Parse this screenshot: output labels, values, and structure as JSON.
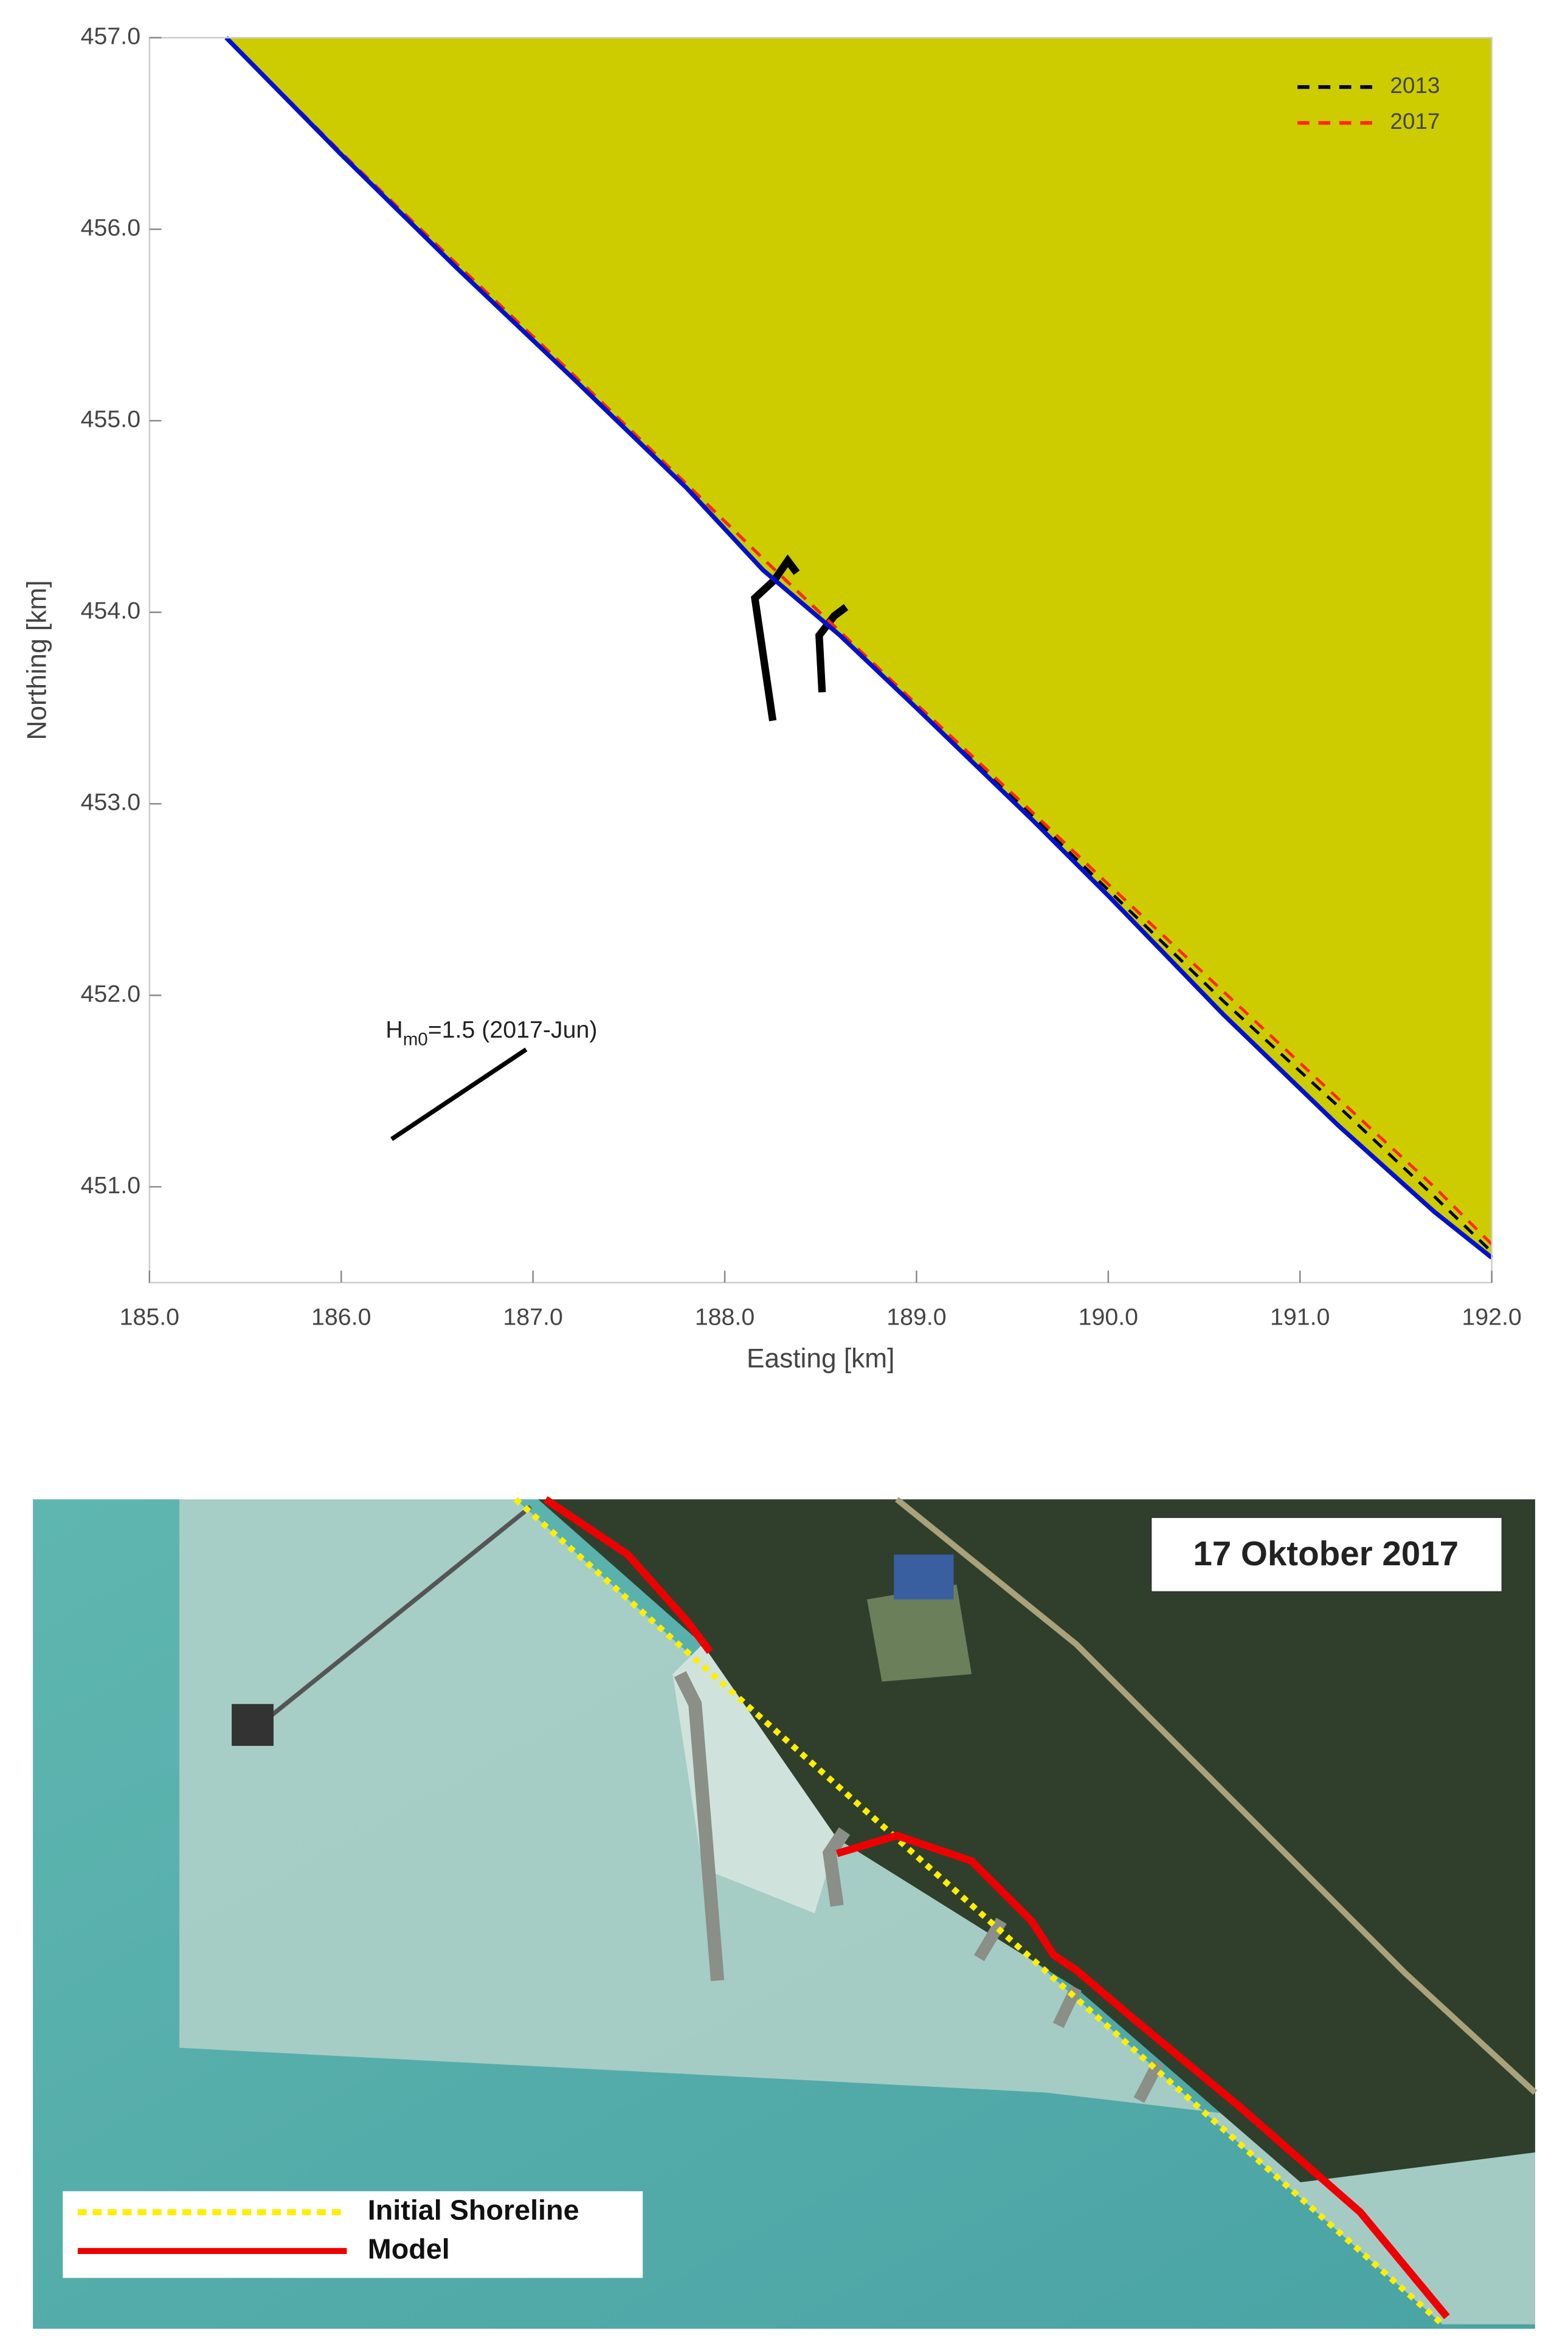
{
  "chart_data": [
    {
      "type": "line",
      "xlabel": "Easting [km]",
      "ylabel": "Northing [km]",
      "annotation": [
        "H",
        "m0",
        "=1.5 (2017-Jun)"
      ],
      "x": [
        185.4,
        186.0,
        186.6,
        187.2,
        187.8,
        188.2,
        188.6,
        189.0,
        189.6,
        190.0,
        190.6,
        191.2,
        191.7,
        192.0
      ],
      "series": [
        {
          "name": "2013",
          "color": "#000000",
          "dashed": true,
          "values": [
            457.0,
            456.4,
            455.82,
            455.25,
            454.67,
            454.28,
            453.9,
            453.51,
            452.94,
            452.55,
            451.97,
            451.42,
            450.95,
            450.66
          ]
        },
        {
          "name": "2017",
          "color": "#ff2a00",
          "dashed": true,
          "values": [
            457.0,
            456.4,
            455.82,
            455.25,
            454.67,
            454.28,
            453.9,
            453.52,
            452.96,
            452.58,
            452.02,
            451.46,
            451.0,
            450.7
          ]
        },
        {
          "color": "#0010d0",
          "dashed": false,
          "fill": "#cccc00",
          "values": [
            457.0,
            456.39,
            455.8,
            455.23,
            454.65,
            454.22,
            453.88,
            453.5,
            452.92,
            452.52,
            451.9,
            451.32,
            450.87,
            450.63
          ]
        }
      ],
      "xlim": [
        185,
        192
      ],
      "ylim": [
        450.5,
        457
      ],
      "xticks": [
        {
          "value": 185,
          "label": "185.0"
        },
        {
          "value": 186,
          "label": "186.0"
        },
        {
          "value": 187,
          "label": "187.0"
        },
        {
          "value": 188,
          "label": "188.0"
        },
        {
          "value": 189,
          "label": "189.0"
        },
        {
          "value": 190,
          "label": "190.0"
        },
        {
          "value": 191,
          "label": "191.0"
        },
        {
          "value": 192,
          "label": "192.0"
        }
      ],
      "yticks": [
        {
          "value": 451,
          "label": "451.0"
        },
        {
          "value": 452,
          "label": "452.0"
        },
        {
          "value": 453,
          "label": "453.0"
        },
        {
          "value": 454,
          "label": "454.0"
        },
        {
          "value": 455,
          "label": "455.0"
        },
        {
          "value": 456,
          "label": "456.0"
        },
        {
          "value": 457,
          "label": "457.0"
        }
      ],
      "legend": "upper right",
      "grid": false
    },
    {
      "type": "image",
      "title": "17 Oktober 2017",
      "series": [
        {
          "name": "Initial Shoreline",
          "color": "#ffee00"
        },
        {
          "name": "Model",
          "color": "#ee0000"
        }
      ]
    }
  ]
}
